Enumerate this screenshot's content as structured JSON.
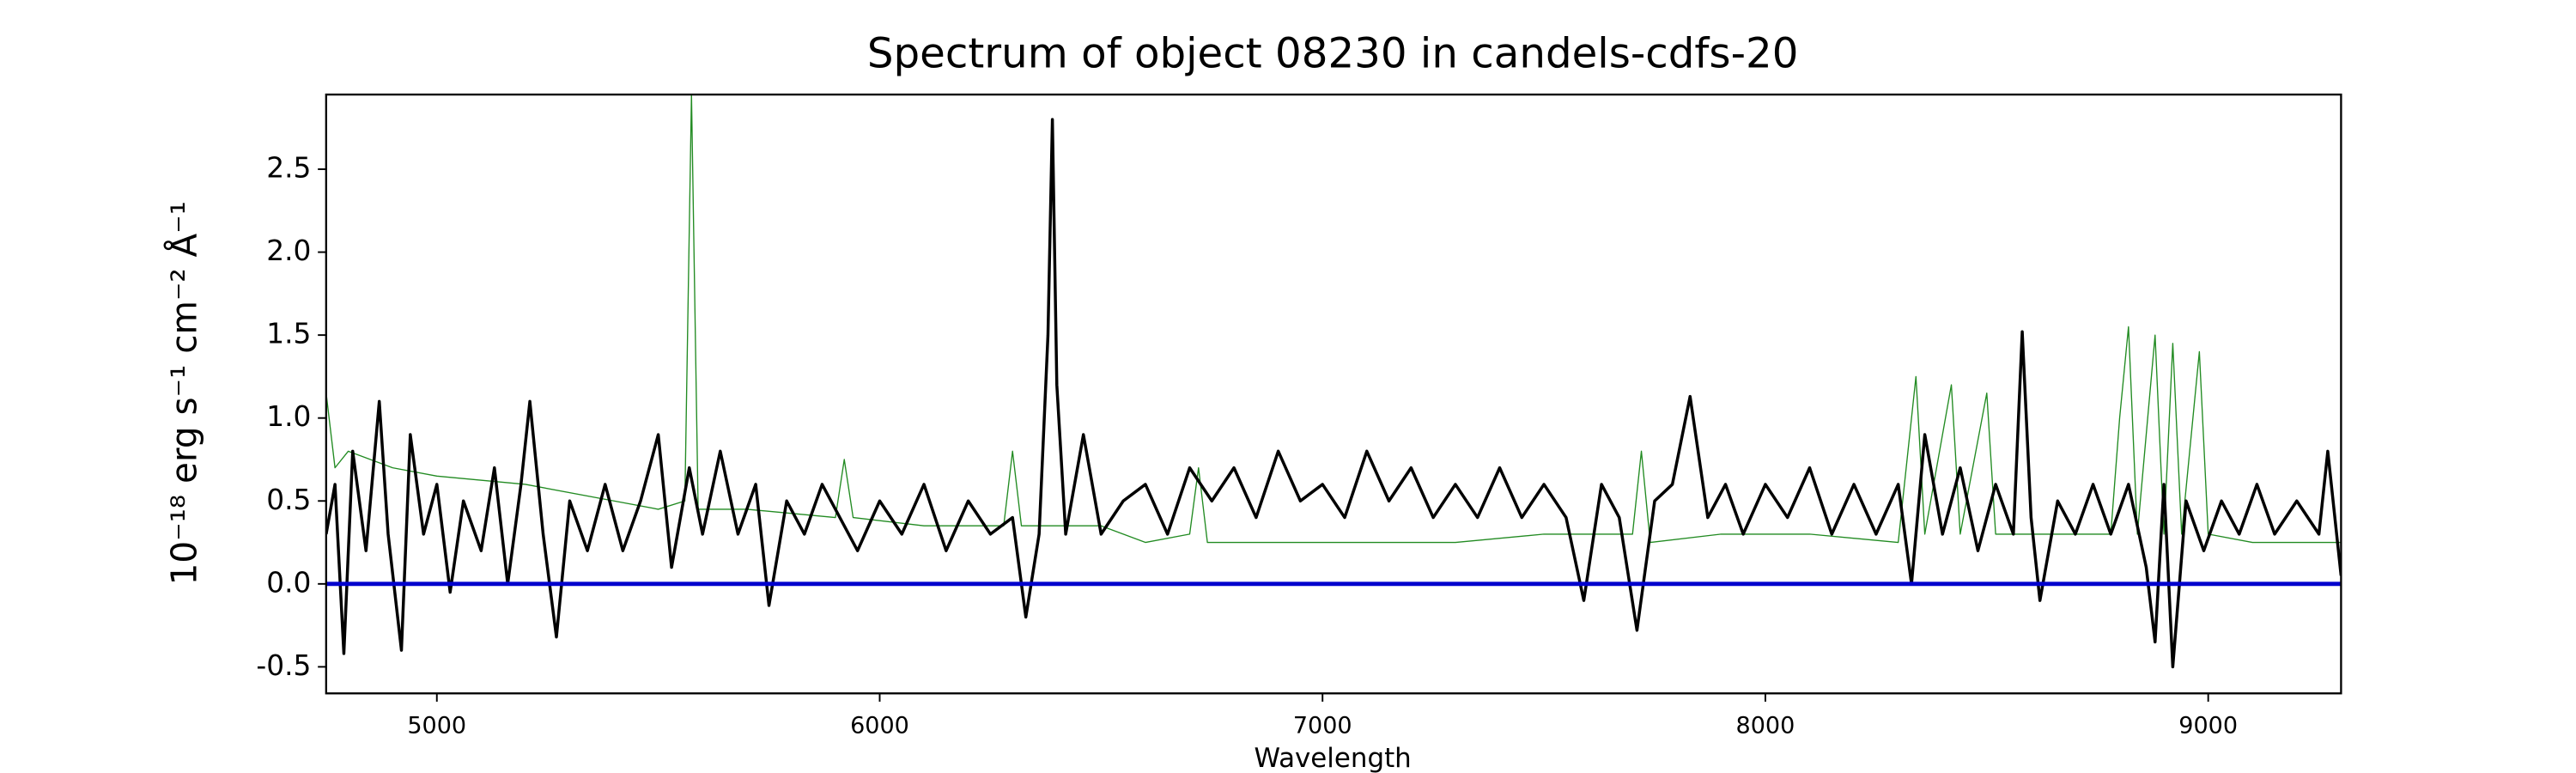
{
  "chart_data": {
    "type": "line",
    "title": "Spectrum of object 08230 in candels-cdfs-20",
    "xlabel": "Wavelength",
    "ylabel": "10⁻¹⁸ erg s⁻¹ cm⁻² Å⁻¹",
    "xlim": [
      4750,
      9300
    ],
    "ylim": [
      -0.66,
      2.95
    ],
    "xticks": [
      5000,
      6000,
      7000,
      8000,
      9000
    ],
    "yticks": [
      -0.5,
      {
        "value": 0,
        "label": "0.0"
      },
      0.5,
      {
        "value": 1,
        "label": "1.0"
      },
      1.5,
      {
        "value": 2,
        "label": "2.0"
      },
      2.5
    ],
    "series": [
      {
        "color": "#228b22",
        "width": 0.7,
        "x": [
          4750,
          4770,
          4800,
          4900,
          5000,
          5200,
          5400,
          5500,
          5560,
          5575,
          5590,
          5700,
          5900,
          5920,
          5940,
          6100,
          6280,
          6300,
          6320,
          6500,
          6600,
          6700,
          6720,
          6740,
          7000,
          7300,
          7500,
          7700,
          7720,
          7740,
          7900,
          8100,
          8300,
          8340,
          8360,
          8420,
          8440,
          8500,
          8520,
          8640,
          8780,
          8800,
          8820,
          8840,
          8880,
          8900,
          8920,
          8940,
          8980,
          9000,
          9100,
          9300
        ],
        "values": [
          1.15,
          0.7,
          0.8,
          0.7,
          0.65,
          0.6,
          0.5,
          0.45,
          0.5,
          2.95,
          0.45,
          0.45,
          0.4,
          0.75,
          0.4,
          0.35,
          0.35,
          0.8,
          0.35,
          0.35,
          0.25,
          0.3,
          0.7,
          0.25,
          0.25,
          0.25,
          0.3,
          0.3,
          0.8,
          0.25,
          0.3,
          0.3,
          0.25,
          1.25,
          0.3,
          1.2,
          0.3,
          1.15,
          0.3,
          0.3,
          0.3,
          1.0,
          1.55,
          0.3,
          1.5,
          0.3,
          1.45,
          0.3,
          1.4,
          0.3,
          0.25,
          0.25
        ]
      },
      {
        "color": "#000000",
        "width": 1.8,
        "x": [
          4750,
          4770,
          4790,
          4810,
          4840,
          4870,
          4890,
          4920,
          4940,
          4970,
          5000,
          5030,
          5060,
          5100,
          5130,
          5160,
          5190,
          5210,
          5240,
          5270,
          5300,
          5340,
          5380,
          5420,
          5460,
          5500,
          5530,
          5570,
          5600,
          5640,
          5680,
          5720,
          5750,
          5790,
          5830,
          5870,
          5910,
          5950,
          6000,
          6050,
          6100,
          6150,
          6200,
          6250,
          6300,
          6330,
          6360,
          6380,
          6390,
          6400,
          6420,
          6460,
          6500,
          6550,
          6600,
          6650,
          6700,
          6750,
          6800,
          6850,
          6900,
          6950,
          7000,
          7050,
          7100,
          7150,
          7200,
          7250,
          7300,
          7350,
          7400,
          7450,
          7500,
          7550,
          7590,
          7630,
          7670,
          7710,
          7750,
          7790,
          7830,
          7870,
          7910,
          7950,
          8000,
          8050,
          8100,
          8150,
          8200,
          8250,
          8300,
          8330,
          8360,
          8400,
          8440,
          8480,
          8520,
          8560,
          8580,
          8600,
          8620,
          8660,
          8700,
          8740,
          8780,
          8820,
          8860,
          8880,
          8900,
          8920,
          8950,
          8990,
          9030,
          9070,
          9110,
          9150,
          9200,
          9250,
          9270,
          9290,
          9300
        ],
        "values": [
          0.3,
          0.6,
          -0.42,
          0.8,
          0.2,
          1.1,
          0.3,
          -0.4,
          0.9,
          0.3,
          0.6,
          -0.05,
          0.5,
          0.2,
          0.7,
          0.0,
          0.6,
          1.1,
          0.3,
          -0.32,
          0.5,
          0.2,
          0.6,
          0.2,
          0.5,
          0.9,
          0.1,
          0.7,
          0.3,
          0.8,
          0.3,
          0.6,
          -0.13,
          0.5,
          0.3,
          0.6,
          0.4,
          0.2,
          0.5,
          0.3,
          0.6,
          0.2,
          0.5,
          0.3,
          0.4,
          -0.2,
          0.3,
          1.5,
          2.8,
          1.2,
          0.3,
          0.9,
          0.3,
          0.5,
          0.6,
          0.3,
          0.7,
          0.5,
          0.7,
          0.4,
          0.8,
          0.5,
          0.6,
          0.4,
          0.8,
          0.5,
          0.7,
          0.4,
          0.6,
          0.4,
          0.7,
          0.4,
          0.6,
          0.4,
          -0.1,
          0.6,
          0.4,
          -0.28,
          0.5,
          0.6,
          1.13,
          0.4,
          0.6,
          0.3,
          0.6,
          0.4,
          0.7,
          0.3,
          0.6,
          0.3,
          0.6,
          0.0,
          0.9,
          0.3,
          0.7,
          0.2,
          0.6,
          0.3,
          1.52,
          0.4,
          -0.1,
          0.5,
          0.3,
          0.6,
          0.3,
          0.6,
          0.1,
          -0.35,
          0.6,
          -0.5,
          0.5,
          0.2,
          0.5,
          0.3,
          0.6,
          0.3,
          0.5,
          0.3,
          0.8,
          0.3,
          0.05
        ]
      },
      {
        "color": "#0000cd",
        "width": 2.5,
        "x": [
          4750,
          9300
        ],
        "values": [
          0,
          0
        ]
      }
    ]
  }
}
